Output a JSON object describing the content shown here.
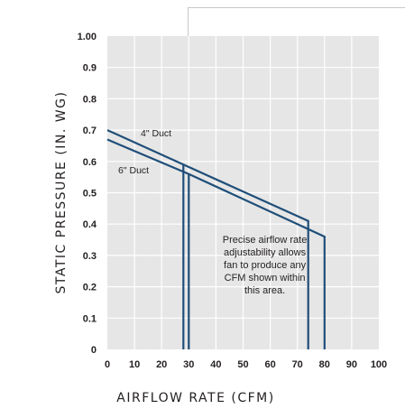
{
  "chart_data": {
    "type": "line",
    "title": "",
    "xlabel": "AIRFLOW RATE (CFM)",
    "ylabel": "STATIC PRESSURE (IN. WG)",
    "xlim": [
      0,
      100
    ],
    "ylim": [
      0,
      1.0
    ],
    "x_ticks": [
      "0",
      "10",
      "20",
      "30",
      "40",
      "50",
      "60",
      "70",
      "80",
      "90",
      "100"
    ],
    "y_ticks": [
      "0",
      "0.1",
      "0.2",
      "0.3",
      "0.4",
      "0.5",
      "0.6",
      "0.7",
      "0.8",
      "0.9",
      "1.00"
    ],
    "grid": true,
    "background": "#e6e6e6",
    "line_color": "#1f4e79",
    "series": [
      {
        "name": "4\" Duct",
        "points": [
          [
            0,
            0.7
          ],
          [
            28,
            0.59
          ],
          [
            74,
            0.41
          ],
          [
            74,
            0.0
          ]
        ],
        "drop": [
          [
            28,
            0.59
          ],
          [
            28,
            0.0
          ]
        ]
      },
      {
        "name": "6\" Duct",
        "points": [
          [
            0,
            0.67
          ],
          [
            30,
            0.56
          ],
          [
            80,
            0.36
          ],
          [
            80,
            0.0
          ]
        ],
        "drop": [
          [
            30,
            0.56
          ],
          [
            30,
            0.0
          ]
        ]
      }
    ],
    "annotation": {
      "lines": [
        "Precise airflow rate",
        "adjustability allows",
        "fan to produce any",
        "CFM shown within",
        "this area."
      ],
      "x": 58,
      "y": 0.26
    }
  }
}
